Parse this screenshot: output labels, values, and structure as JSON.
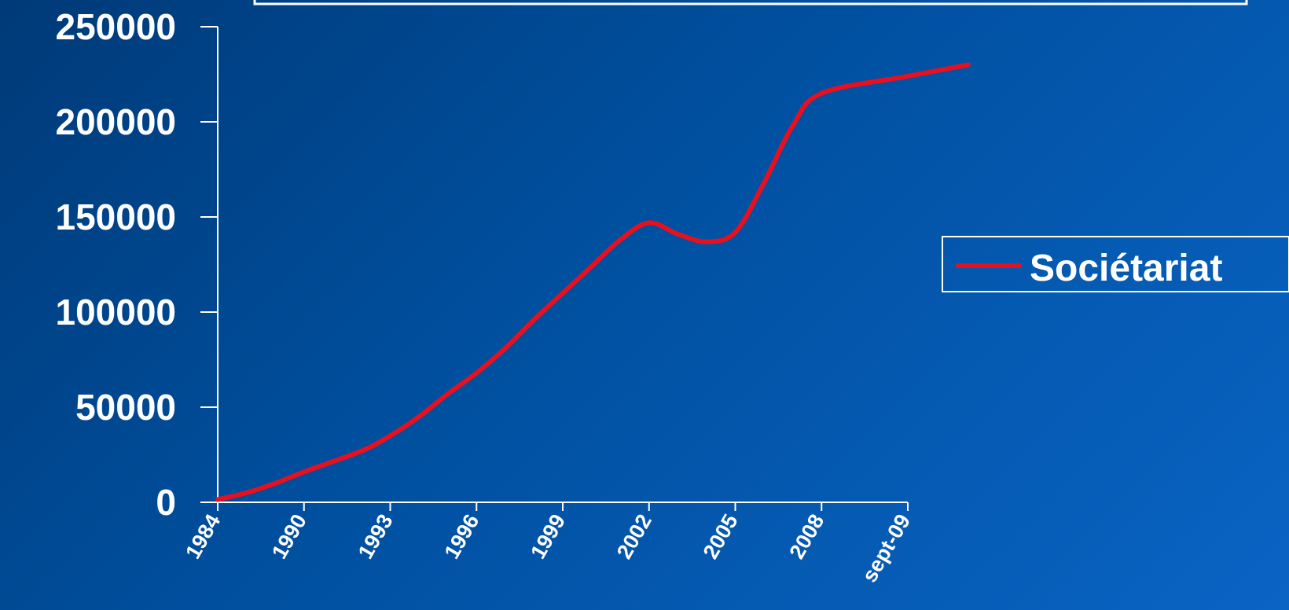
{
  "chart_data": {
    "type": "line",
    "title": "",
    "xlabel": "",
    "ylabel": "",
    "ylim": [
      0,
      250000
    ],
    "yticks": [
      "0",
      "50000",
      "100000",
      "150000",
      "200000",
      "250000"
    ],
    "categories": [
      "1984",
      "1990",
      "1993",
      "1996",
      "1999",
      "2002",
      "2005",
      "2008",
      "sept-09"
    ],
    "series": [
      {
        "name": "Sociétariat",
        "color": "#e8101e",
        "points": [
          {
            "x": 1984,
            "y": 1500
          },
          {
            "x": 1986,
            "y": 5000
          },
          {
            "x": 1988,
            "y": 10000
          },
          {
            "x": 1990,
            "y": 16000
          },
          {
            "x": 1992,
            "y": 27000
          },
          {
            "x": 1993,
            "y": 35000
          },
          {
            "x": 1994,
            "y": 45000
          },
          {
            "x": 1995,
            "y": 57000
          },
          {
            "x": 1996,
            "y": 68000
          },
          {
            "x": 1997,
            "y": 81000
          },
          {
            "x": 1998,
            "y": 96000
          },
          {
            "x": 1999,
            "y": 110000
          },
          {
            "x": 2000,
            "y": 124000
          },
          {
            "x": 2001,
            "y": 138000
          },
          {
            "x": 2002,
            "y": 147000
          },
          {
            "x": 2003,
            "y": 141000
          },
          {
            "x": 2004,
            "y": 137000
          },
          {
            "x": 2005,
            "y": 142000
          },
          {
            "x": 2006,
            "y": 168000
          },
          {
            "x": 2007,
            "y": 198000
          },
          {
            "x": 2008,
            "y": 215000
          },
          {
            "x": 2009,
            "y": 224000
          },
          {
            "x": 2009.7,
            "y": 230000
          }
        ]
      }
    ],
    "grid": false,
    "legend_position": "right"
  }
}
